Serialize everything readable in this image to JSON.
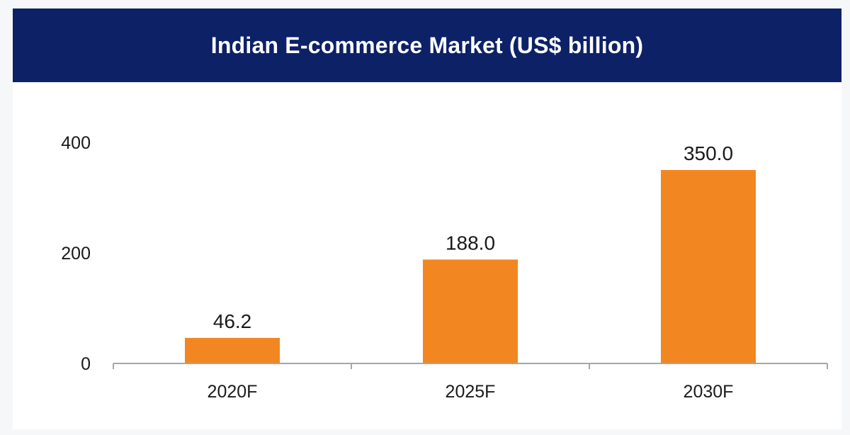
{
  "chart_data": {
    "type": "bar",
    "title": "Indian E-commerce Market (US$ billion)",
    "categories": [
      "2020F",
      "2025F",
      "2030F"
    ],
    "values": [
      46.2,
      188.0,
      350.0
    ],
    "value_labels": [
      "46.2",
      "188.0",
      "350.0"
    ],
    "yticks": [
      "0",
      "200",
      "400"
    ],
    "ylim": [
      0,
      400
    ],
    "grid": false,
    "legend": "none",
    "bar_color": "#f28621",
    "title_bg_color": "#0d2167"
  }
}
